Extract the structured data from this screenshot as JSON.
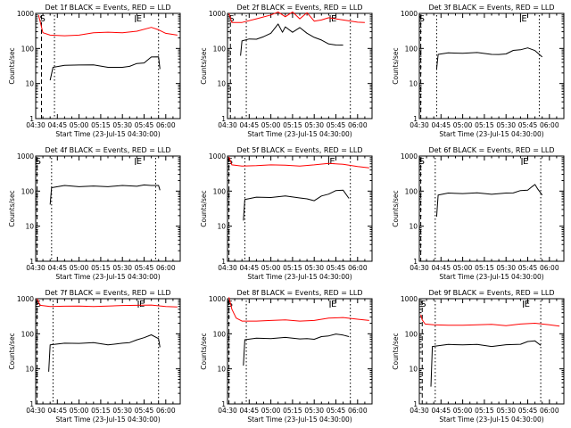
{
  "chart_data": [
    {
      "type": "line",
      "title": "Det 1f BLACK = Events, RED = LLD",
      "xlabel": "Start Time (23-Jul-15 04:30:00)",
      "ylabel": "Counts/sec",
      "x_ticks": [
        "04:30",
        "04:45",
        "05:00",
        "05:15",
        "05:30",
        "05:45",
        "06:00"
      ],
      "y_ticks": [
        "1",
        "10",
        "100",
        "1000"
      ],
      "ylim": [
        1,
        1000
      ],
      "yscale": "log",
      "markers": {
        "start": "S",
        "end": "E"
      },
      "marker_min": [
        4,
        69
      ],
      "vlines_min": [
        13,
        85
      ],
      "series": [
        {
          "color": "#ff0000",
          "x": [
            2,
            5,
            10,
            20,
            30,
            40,
            50,
            60,
            70,
            80,
            85,
            90,
            98
          ],
          "y": [
            900,
            280,
            240,
            230,
            240,
            280,
            290,
            280,
            310,
            400,
            340,
            270,
            240
          ]
        },
        {
          "color": "#000000",
          "x": [
            10,
            12,
            20,
            30,
            40,
            50,
            60,
            65,
            70,
            75,
            80,
            85,
            86
          ],
          "y": [
            12,
            30,
            32,
            35,
            33,
            30,
            28,
            32,
            36,
            40,
            55,
            60,
            25
          ]
        }
      ]
    },
    {
      "type": "line",
      "title": "Det 2f BLACK = Events, RED = LLD",
      "xlabel": "Start Time (23-Jul-15 04:30:00)",
      "ylabel": "Counts/sec",
      "x_ticks": [
        "04:30",
        "04:45",
        "05:00",
        "05:15",
        "05:30",
        "05:45",
        "06:00"
      ],
      "y_ticks": [
        "1",
        "10",
        "100",
        "1000"
      ],
      "ylim": [
        1,
        1000
      ],
      "yscale": "log",
      "markers": {
        "start": "S",
        "end": "E"
      },
      "marker_min": [
        2,
        71
      ],
      "vlines_min": [
        13,
        85
      ],
      "series": [
        {
          "color": "#ff0000",
          "x": [
            1,
            3,
            10,
            20,
            30,
            35,
            40,
            45,
            50,
            55,
            60,
            65,
            70,
            80,
            90,
            95
          ],
          "y": [
            1000,
            550,
            550,
            700,
            900,
            1100,
            800,
            1100,
            700,
            1050,
            600,
            650,
            750,
            650,
            560,
            550
          ]
        },
        {
          "color": "#000000",
          "x": [
            9,
            10,
            15,
            20,
            25,
            30,
            35,
            38,
            40,
            45,
            50,
            55,
            60,
            65,
            70,
            75,
            80
          ],
          "y": [
            60,
            170,
            180,
            190,
            210,
            280,
            480,
            300,
            400,
            300,
            380,
            280,
            200,
            180,
            130,
            130,
            120
          ]
        }
      ]
    },
    {
      "type": "line",
      "title": "Det 3f BLACK = Events, RED = LLD",
      "xlabel": "Start Time (23-Jul-15 04:30:00)",
      "ylabel": "Counts/sec",
      "x_ticks": [
        "04:30",
        "04:45",
        "05:00",
        "05:15",
        "05:30",
        "05:45",
        "06:00"
      ],
      "y_ticks": [
        "1",
        "10",
        "100",
        "1000"
      ],
      "ylim": [
        1,
        1000
      ],
      "yscale": "log",
      "markers": {
        "start": "S",
        "end": "E"
      },
      "marker_min": [
        1,
        70
      ],
      "vlines_min": [
        12,
        83
      ],
      "series": [
        {
          "color": "#000000",
          "x": [
            12,
            13,
            20,
            30,
            40,
            50,
            55,
            60,
            65,
            70,
            75,
            80,
            85
          ],
          "y": [
            25,
            70,
            72,
            75,
            74,
            70,
            65,
            72,
            85,
            95,
            100,
            90,
            55
          ]
        }
      ]
    },
    {
      "type": "line",
      "title": "Det 4f BLACK = Events, RED = LLD",
      "xlabel": "Start Time (23-Jul-15 04:30:00)",
      "ylabel": "Counts/sec",
      "x_ticks": [
        "04:30",
        "04:45",
        "05:00",
        "05:15",
        "05:30",
        "05:45",
        "06:00"
      ],
      "y_ticks": [
        "1",
        "10",
        "100",
        "1000"
      ],
      "ylim": [
        1,
        1000
      ],
      "yscale": "log",
      "markers": {
        "start": "S",
        "end": "E"
      },
      "marker_min": [
        1,
        69
      ],
      "vlines_min": [
        11,
        83
      ],
      "series": [
        {
          "color": "#000000",
          "x": [
            10,
            11,
            20,
            30,
            40,
            50,
            60,
            70,
            75,
            80,
            85,
            86
          ],
          "y": [
            40,
            130,
            140,
            138,
            135,
            138,
            140,
            142,
            145,
            150,
            140,
            110
          ]
        }
      ]
    },
    {
      "type": "line",
      "title": "Det 5f BLACK = Events, RED = LLD",
      "xlabel": "Start Time (23-Jul-15 04:30:00)",
      "ylabel": "Counts/sec",
      "x_ticks": [
        "04:30",
        "04:45",
        "05:00",
        "05:15",
        "05:30",
        "05:45",
        "06:00"
      ],
      "y_ticks": [
        "1",
        "10",
        "100",
        "1000"
      ],
      "ylim": [
        1,
        1000
      ],
      "yscale": "log",
      "markers": {
        "start": "S",
        "end": "E"
      },
      "marker_min": [
        1,
        70
      ],
      "vlines_min": [
        12,
        85
      ],
      "series": [
        {
          "color": "#ff0000",
          "x": [
            1,
            3,
            10,
            20,
            30,
            40,
            50,
            60,
            70,
            80,
            90,
            98
          ],
          "y": [
            950,
            560,
            520,
            530,
            560,
            550,
            520,
            560,
            620,
            580,
            500,
            460
          ]
        },
        {
          "color": "#000000",
          "x": [
            11,
            12,
            20,
            30,
            40,
            50,
            55,
            60,
            65,
            70,
            75,
            80,
            84
          ],
          "y": [
            14,
            60,
            65,
            68,
            70,
            66,
            58,
            55,
            70,
            85,
            100,
            110,
            60
          ]
        }
      ]
    },
    {
      "type": "line",
      "title": "Det 6f BLACK = Events, RED = LLD",
      "xlabel": "Start Time (23-Jul-15 04:30:00)",
      "ylabel": "Counts/sec",
      "x_ticks": [
        "04:30",
        "04:45",
        "05:00",
        "05:15",
        "05:30",
        "05:45",
        "06:00"
      ],
      "y_ticks": [
        "1",
        "10",
        "100",
        "1000"
      ],
      "ylim": [
        1,
        1000
      ],
      "yscale": "log",
      "markers": {
        "start": "S",
        "end": "E"
      },
      "marker_min": [
        1,
        71
      ],
      "vlines_min": [
        11,
        84
      ],
      "series": [
        {
          "color": "#000000",
          "x": [
            12,
            13,
            20,
            30,
            40,
            50,
            60,
            65,
            70,
            75,
            78,
            80,
            82,
            85
          ],
          "y": [
            18,
            80,
            85,
            88,
            86,
            84,
            85,
            92,
            100,
            110,
            130,
            160,
            110,
            80
          ]
        }
      ]
    },
    {
      "type": "line",
      "title": "Det 7f BLACK = Events, RED = LLD",
      "xlabel": "Start Time (23-Jul-15 04:30:00)",
      "ylabel": "Counts/sec",
      "x_ticks": [
        "04:30",
        "04:45",
        "05:00",
        "05:15",
        "05:30",
        "05:45",
        "06:00"
      ],
      "y_ticks": [
        "1",
        "10",
        "100",
        "1000"
      ],
      "ylim": [
        1,
        1000
      ],
      "yscale": "log",
      "markers": {
        "start": "S",
        "end": "E"
      },
      "marker_min": [
        1,
        71
      ],
      "vlines_min": [
        12,
        85
      ],
      "series": [
        {
          "color": "#ff0000",
          "x": [
            1,
            3,
            10,
            20,
            30,
            40,
            50,
            60,
            70,
            80,
            90,
            98
          ],
          "y": [
            1000,
            650,
            600,
            610,
            620,
            600,
            620,
            640,
            650,
            660,
            600,
            580
          ]
        },
        {
          "color": "#000000",
          "x": [
            9,
            10,
            20,
            30,
            40,
            50,
            60,
            65,
            70,
            75,
            80,
            85,
            86
          ],
          "y": [
            8,
            50,
            52,
            55,
            54,
            50,
            52,
            58,
            65,
            80,
            90,
            75,
            40
          ]
        }
      ]
    },
    {
      "type": "line",
      "title": "Det 8f BLACK = Events, RED = LLD",
      "xlabel": "Start Time (23-Jul-15 04:30:00)",
      "ylabel": "Counts/sec",
      "x_ticks": [
        "04:30",
        "04:45",
        "05:00",
        "05:15",
        "05:30",
        "05:45",
        "06:00"
      ],
      "y_ticks": [
        "1",
        "10",
        "100",
        "1000"
      ],
      "ylim": [
        1,
        1000
      ],
      "yscale": "log",
      "markers": {
        "start": "S",
        "end": "E"
      },
      "marker_min": [
        1,
        71
      ],
      "vlines_min": [
        13,
        85
      ],
      "series": [
        {
          "color": "#ff0000",
          "x": [
            1,
            3,
            6,
            10,
            20,
            30,
            40,
            50,
            60,
            70,
            80,
            90,
            98
          ],
          "y": [
            1100,
            500,
            280,
            230,
            230,
            240,
            250,
            230,
            240,
            280,
            290,
            260,
            240
          ]
        },
        {
          "color": "#000000",
          "x": [
            11,
            12,
            20,
            30,
            40,
            50,
            55,
            60,
            65,
            70,
            75,
            80,
            84
          ],
          "y": [
            12,
            70,
            72,
            75,
            76,
            74,
            70,
            72,
            80,
            90,
            95,
            95,
            80
          ]
        }
      ]
    },
    {
      "type": "line",
      "title": "Det 9f BLACK = Events, RED = LLD",
      "xlabel": "Start Time (23-Jul-15 04:30:00)",
      "ylabel": "Counts/sec",
      "x_ticks": [
        "04:30",
        "04:45",
        "05:00",
        "05:15",
        "05:30",
        "05:45",
        "06:00"
      ],
      "y_ticks": [
        "1",
        "10",
        "100",
        "1000"
      ],
      "ylim": [
        1,
        1000
      ],
      "yscale": "log",
      "markers": {
        "start": "S",
        "end": "E"
      },
      "marker_min": [
        2,
        72
      ],
      "vlines_min": [
        11,
        84
      ],
      "series": [
        {
          "color": "#ff0000",
          "x": [
            1,
            2,
            4,
            10,
            20,
            30,
            40,
            50,
            60,
            70,
            80,
            90,
            97
          ],
          "y": [
            350,
            250,
            190,
            180,
            175,
            175,
            180,
            185,
            170,
            190,
            200,
            180,
            165
          ]
        },
        {
          "color": "#000000",
          "x": [
            8,
            9,
            20,
            30,
            40,
            50,
            60,
            70,
            75,
            80,
            84
          ],
          "y": [
            3,
            45,
            48,
            50,
            48,
            45,
            47,
            52,
            58,
            65,
            45
          ]
        }
      ]
    }
  ]
}
